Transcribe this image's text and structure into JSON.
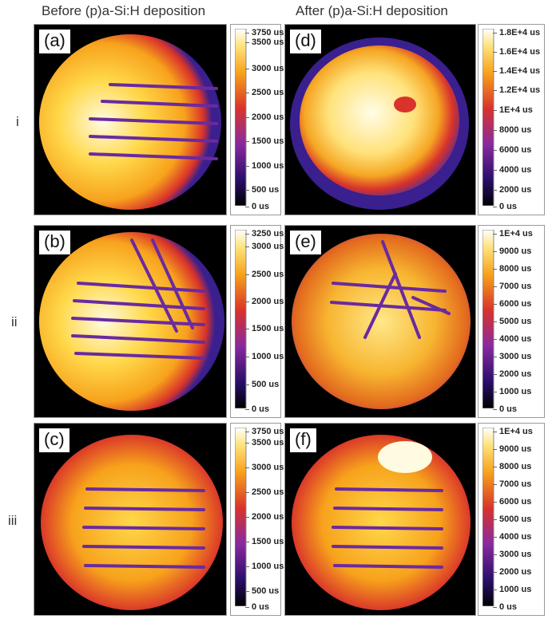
{
  "titles": {
    "before": "Before (p)a-Si:H deposition",
    "after": "After (p)a-Si:H deposition"
  },
  "rows": [
    "i",
    "ii",
    "iii"
  ],
  "panels": {
    "a": "(a)",
    "b": "(b)",
    "c": "(c)",
    "d": "(d)",
    "e": "(e)",
    "f": "(f)"
  },
  "colorbars": {
    "a": [
      "3750 us",
      "3500 us",
      "3000 us",
      "2500 us",
      "2000 us",
      "1500 us",
      "1000 us",
      "500 us",
      "0 us"
    ],
    "d": [
      "1.8E+4 us",
      "1.6E+4 us",
      "1.4E+4 us",
      "1.2E+4 us",
      "1E+4 us",
      "8000 us",
      "6000 us",
      "4000 us",
      "2000 us",
      "0 us"
    ],
    "b": [
      "3250 us",
      "3000 us",
      "2500 us",
      "2000 us",
      "1500 us",
      "1000 us",
      "500 us",
      "0 us"
    ],
    "e": [
      "1E+4 us",
      "9000 us",
      "8000 us",
      "7000 us",
      "6000 us",
      "5000 us",
      "4000 us",
      "3000 us",
      "2000 us",
      "1000 us",
      "0 us"
    ],
    "c": [
      "3750 us",
      "3500 us",
      "3000 us",
      "2500 us",
      "2000 us",
      "1500 us",
      "1000 us",
      "500 us",
      "0 us"
    ],
    "f": [
      "1E+4 us",
      "9000 us",
      "8000 us",
      "7000 us",
      "6000 us",
      "5000 us",
      "4000 us",
      "3000 us",
      "2000 us",
      "1000 us",
      "0 us"
    ]
  },
  "colors": {
    "background": "#000000",
    "low": "#3a1f8f",
    "mid": "#d9332a",
    "high": "#f5a623",
    "peak": "#fff7c2"
  }
}
